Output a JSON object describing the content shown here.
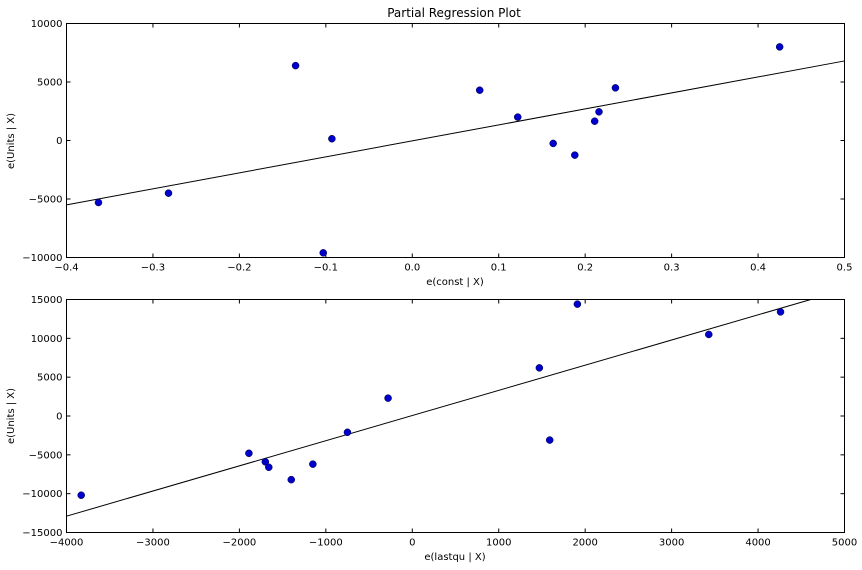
{
  "chart_data": [
    {
      "type": "scatter",
      "title": "Partial Regression Plot",
      "xlabel": "e(const | X)",
      "ylabel": "e(Units | X)",
      "xlim": [
        -0.4,
        0.5
      ],
      "ylim": [
        -10000,
        10000
      ],
      "xticks": [
        -0.4,
        -0.3,
        -0.2,
        -0.1,
        0.0,
        0.1,
        0.2,
        0.3,
        0.4,
        0.5
      ],
      "xtick_labels": [
        "−0.4",
        "−0.3",
        "−0.2",
        "−0.1",
        "0.0",
        "0.1",
        "0.2",
        "0.3",
        "0.4",
        "0.5"
      ],
      "yticks": [
        -10000,
        -5000,
        0,
        5000,
        10000
      ],
      "ytick_labels": [
        "−10000",
        "−5000",
        "0",
        "5000",
        "10000"
      ],
      "grid": false,
      "marker_color": "#0000cc",
      "line_color": "#000000",
      "points": [
        {
          "x": -0.363,
          "y": -5300
        },
        {
          "x": -0.282,
          "y": -4500
        },
        {
          "x": -0.135,
          "y": 6400
        },
        {
          "x": -0.103,
          "y": -9600
        },
        {
          "x": -0.093,
          "y": 150
        },
        {
          "x": 0.078,
          "y": 4300
        },
        {
          "x": 0.122,
          "y": 2000
        },
        {
          "x": 0.163,
          "y": -250
        },
        {
          "x": 0.188,
          "y": -1250
        },
        {
          "x": 0.211,
          "y": 1650
        },
        {
          "x": 0.216,
          "y": 2450
        },
        {
          "x": 0.235,
          "y": 4500
        },
        {
          "x": 0.425,
          "y": 8000
        }
      ],
      "fit_line": {
        "x": [
          -0.4,
          0.5
        ],
        "y": [
          -5500,
          6800
        ]
      }
    },
    {
      "type": "scatter",
      "title": "",
      "xlabel": "e(lastqu | X)",
      "ylabel": "e(Units | X)",
      "xlim": [
        -4000,
        5000
      ],
      "ylim": [
        -15000,
        15000
      ],
      "xticks": [
        -4000,
        -3000,
        -2000,
        -1000,
        0,
        1000,
        2000,
        3000,
        4000,
        5000
      ],
      "xtick_labels": [
        "−4000",
        "−3000",
        "−2000",
        "−1000",
        "0",
        "1000",
        "2000",
        "3000",
        "4000",
        "5000"
      ],
      "yticks": [
        -15000,
        -10000,
        -5000,
        0,
        5000,
        10000,
        15000
      ],
      "ytick_labels": [
        "−15000",
        "−10000",
        "−5000",
        "0",
        "5000",
        "10000",
        "15000"
      ],
      "grid": false,
      "marker_color": "#0000cc",
      "line_color": "#000000",
      "points": [
        {
          "x": -3830,
          "y": -10200
        },
        {
          "x": -1890,
          "y": -4800
        },
        {
          "x": -1700,
          "y": -5900
        },
        {
          "x": -1660,
          "y": -6600
        },
        {
          "x": -1400,
          "y": -8200
        },
        {
          "x": -1150,
          "y": -6200
        },
        {
          "x": -750,
          "y": -2100
        },
        {
          "x": -280,
          "y": 2300
        },
        {
          "x": 1470,
          "y": 6200
        },
        {
          "x": 1590,
          "y": -3100
        },
        {
          "x": 1910,
          "y": 14400
        },
        {
          "x": 3430,
          "y": 10500
        },
        {
          "x": 4260,
          "y": 13400
        }
      ],
      "fit_line": {
        "x": [
          -4000,
          4610
        ],
        "y": [
          -12900,
          15000
        ]
      }
    }
  ]
}
